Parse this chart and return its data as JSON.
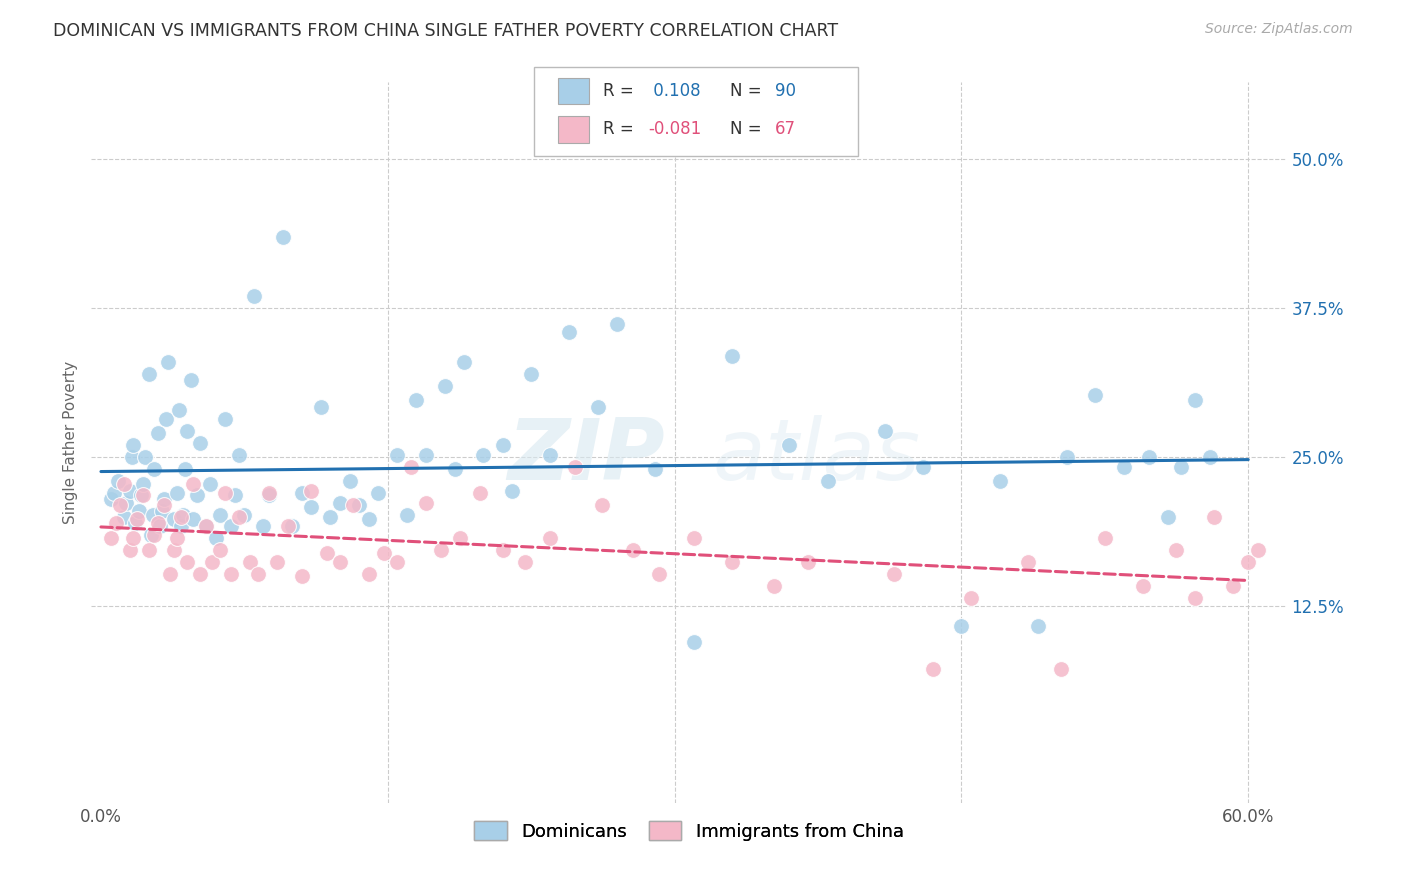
{
  "title": "DOMINICAN VS IMMIGRANTS FROM CHINA SINGLE FATHER POVERTY CORRELATION CHART",
  "source": "Source: ZipAtlas.com",
  "ylabel": "Single Father Poverty",
  "xlim": [
    -0.005,
    0.62
  ],
  "ylim": [
    -0.04,
    0.565
  ],
  "yticks": [
    0.125,
    0.25,
    0.375,
    0.5
  ],
  "ytick_labels": [
    "12.5%",
    "25.0%",
    "37.5%",
    "50.0%"
  ],
  "legend_labels": [
    "Dominicans",
    "Immigrants from China"
  ],
  "R_dom": 0.108,
  "N_dom": 90,
  "R_china": -0.081,
  "N_china": 67,
  "blue_color": "#a8cfe8",
  "pink_color": "#f4b8c8",
  "blue_line_color": "#2170b0",
  "pink_line_color": "#e0507a",
  "background_color": "#ffffff",
  "grid_color": "#cccccc",
  "watermark": "ZIPatlas",
  "dom_x": [
    0.005,
    0.007,
    0.009,
    0.012,
    0.013,
    0.015,
    0.016,
    0.017,
    0.018,
    0.02,
    0.021,
    0.022,
    0.023,
    0.025,
    0.026,
    0.027,
    0.028,
    0.03,
    0.031,
    0.032,
    0.033,
    0.034,
    0.035,
    0.038,
    0.04,
    0.041,
    0.042,
    0.043,
    0.044,
    0.045,
    0.047,
    0.048,
    0.05,
    0.052,
    0.055,
    0.057,
    0.06,
    0.062,
    0.065,
    0.068,
    0.07,
    0.072,
    0.075,
    0.08,
    0.085,
    0.088,
    0.095,
    0.1,
    0.105,
    0.11,
    0.115,
    0.12,
    0.125,
    0.13,
    0.135,
    0.14,
    0.145,
    0.155,
    0.16,
    0.165,
    0.17,
    0.18,
    0.185,
    0.19,
    0.2,
    0.21,
    0.215,
    0.225,
    0.235,
    0.245,
    0.26,
    0.27,
    0.29,
    0.31,
    0.33,
    0.36,
    0.38,
    0.41,
    0.43,
    0.45,
    0.47,
    0.49,
    0.505,
    0.52,
    0.535,
    0.548,
    0.558,
    0.565,
    0.572,
    0.58
  ],
  "dom_y": [
    0.215,
    0.22,
    0.23,
    0.2,
    0.212,
    0.222,
    0.25,
    0.26,
    0.195,
    0.205,
    0.218,
    0.228,
    0.25,
    0.32,
    0.185,
    0.202,
    0.24,
    0.27,
    0.192,
    0.205,
    0.215,
    0.282,
    0.33,
    0.198,
    0.22,
    0.29,
    0.192,
    0.202,
    0.24,
    0.272,
    0.315,
    0.198,
    0.218,
    0.262,
    0.192,
    0.228,
    0.182,
    0.202,
    0.282,
    0.192,
    0.218,
    0.252,
    0.202,
    0.385,
    0.192,
    0.218,
    0.435,
    0.192,
    0.22,
    0.208,
    0.292,
    0.2,
    0.212,
    0.23,
    0.21,
    0.198,
    0.22,
    0.252,
    0.202,
    0.298,
    0.252,
    0.31,
    0.24,
    0.33,
    0.252,
    0.26,
    0.222,
    0.32,
    0.252,
    0.355,
    0.292,
    0.362,
    0.24,
    0.095,
    0.335,
    0.26,
    0.23,
    0.272,
    0.242,
    0.108,
    0.23,
    0.108,
    0.25,
    0.302,
    0.242,
    0.25,
    0.2,
    0.242,
    0.298,
    0.25
  ],
  "china_x": [
    0.005,
    0.008,
    0.01,
    0.012,
    0.015,
    0.017,
    0.019,
    0.022,
    0.025,
    0.028,
    0.03,
    0.033,
    0.036,
    0.038,
    0.04,
    0.042,
    0.045,
    0.048,
    0.052,
    0.055,
    0.058,
    0.062,
    0.065,
    0.068,
    0.072,
    0.078,
    0.082,
    0.088,
    0.092,
    0.098,
    0.105,
    0.11,
    0.118,
    0.125,
    0.132,
    0.14,
    0.148,
    0.155,
    0.162,
    0.17,
    0.178,
    0.188,
    0.198,
    0.21,
    0.222,
    0.235,
    0.248,
    0.262,
    0.278,
    0.292,
    0.31,
    0.33,
    0.352,
    0.37,
    0.415,
    0.435,
    0.455,
    0.485,
    0.502,
    0.525,
    0.545,
    0.562,
    0.572,
    0.582,
    0.592,
    0.6,
    0.605
  ],
  "china_y": [
    0.182,
    0.195,
    0.21,
    0.228,
    0.172,
    0.182,
    0.198,
    0.218,
    0.172,
    0.185,
    0.195,
    0.21,
    0.152,
    0.172,
    0.182,
    0.2,
    0.162,
    0.228,
    0.152,
    0.192,
    0.162,
    0.172,
    0.22,
    0.152,
    0.2,
    0.162,
    0.152,
    0.22,
    0.162,
    0.192,
    0.15,
    0.222,
    0.17,
    0.162,
    0.21,
    0.152,
    0.17,
    0.162,
    0.242,
    0.212,
    0.172,
    0.182,
    0.22,
    0.172,
    0.162,
    0.182,
    0.242,
    0.21,
    0.172,
    0.152,
    0.182,
    0.162,
    0.142,
    0.162,
    0.152,
    0.072,
    0.132,
    0.162,
    0.072,
    0.182,
    0.142,
    0.172,
    0.132,
    0.2,
    0.142,
    0.162,
    0.172
  ]
}
